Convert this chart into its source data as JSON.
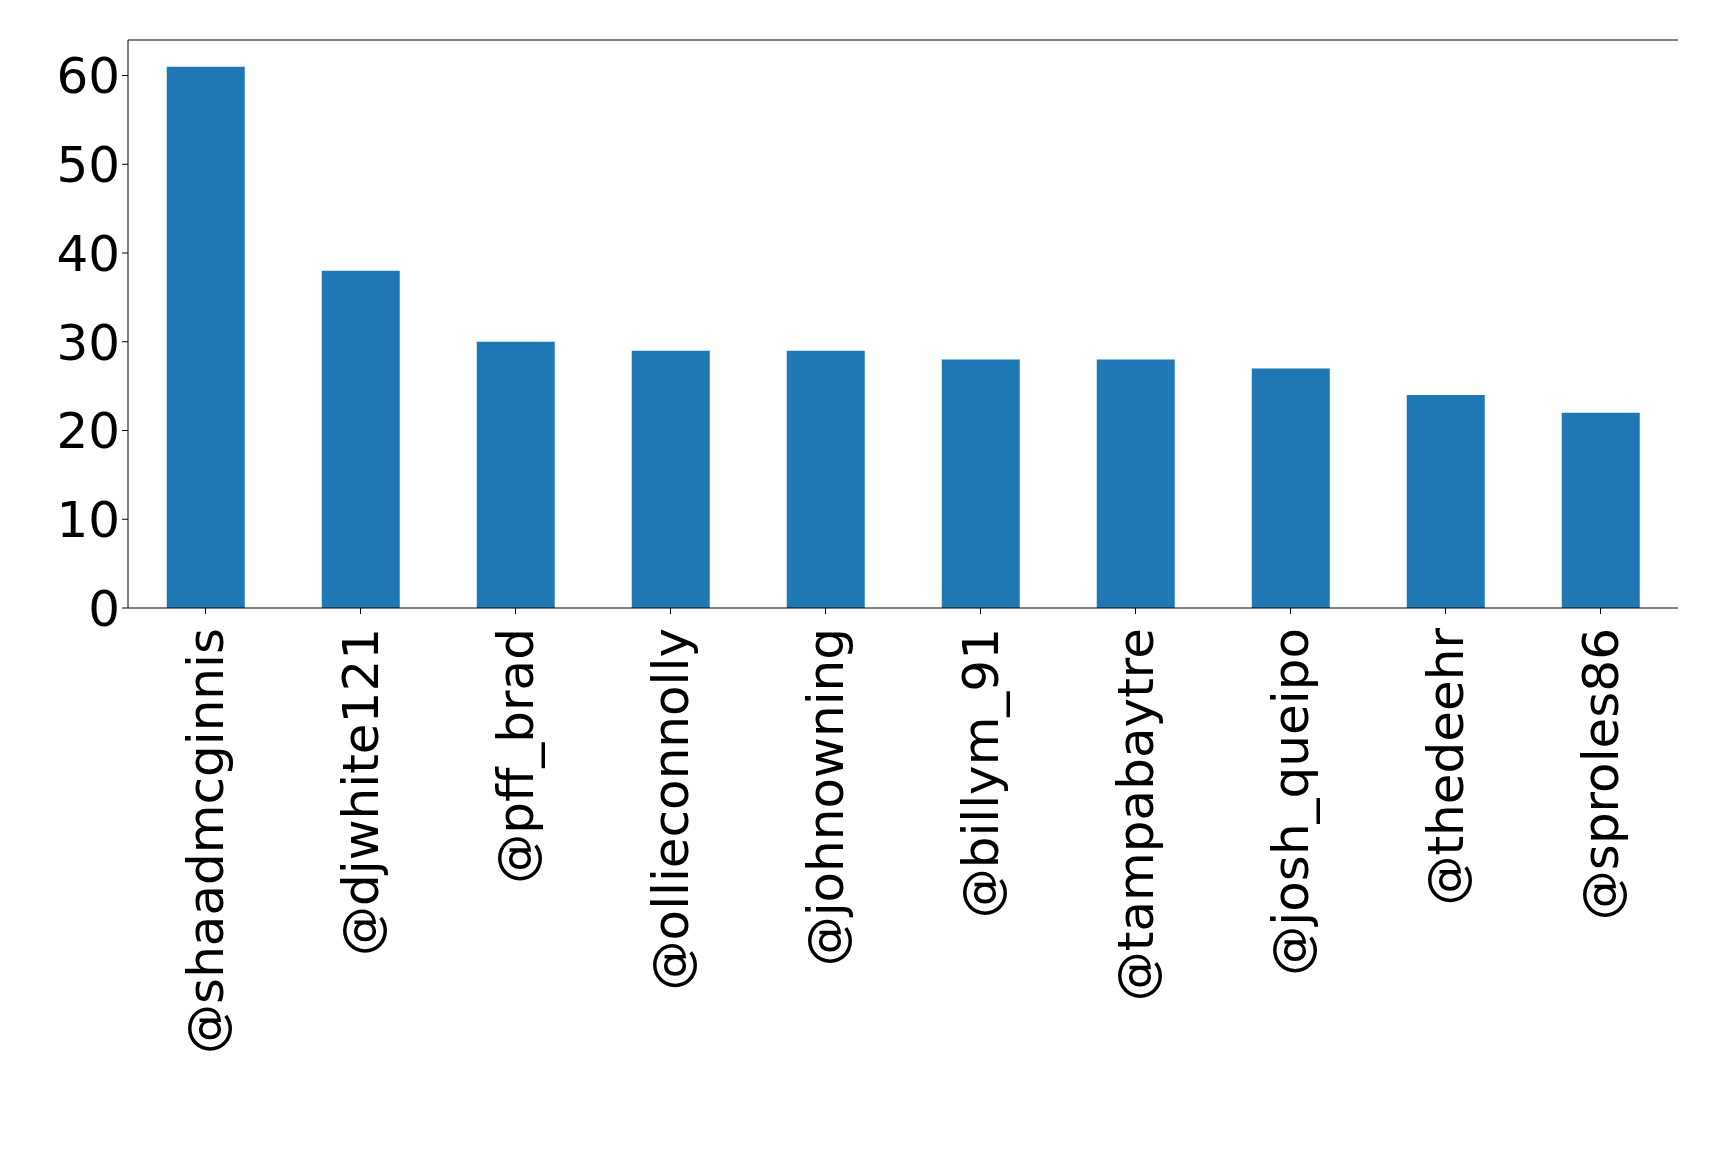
{
  "chart_data": {
    "type": "bar",
    "categories": [
      "@shaadmcginnis",
      "@djwhite121",
      "@pff_brad",
      "@ollieconnolly",
      "@johnowning",
      "@billym_91",
      "@tampabaytre",
      "@josh_queipo",
      "@thedeehr",
      "@sproles86"
    ],
    "values": [
      61,
      38,
      30,
      29,
      29,
      28,
      28,
      27,
      24,
      22
    ],
    "color": "#1f77b4",
    "ylim": [
      0,
      64
    ],
    "yticks": [
      0,
      10,
      20,
      30,
      40,
      50,
      60
    ],
    "grid": false,
    "legend": false
  }
}
